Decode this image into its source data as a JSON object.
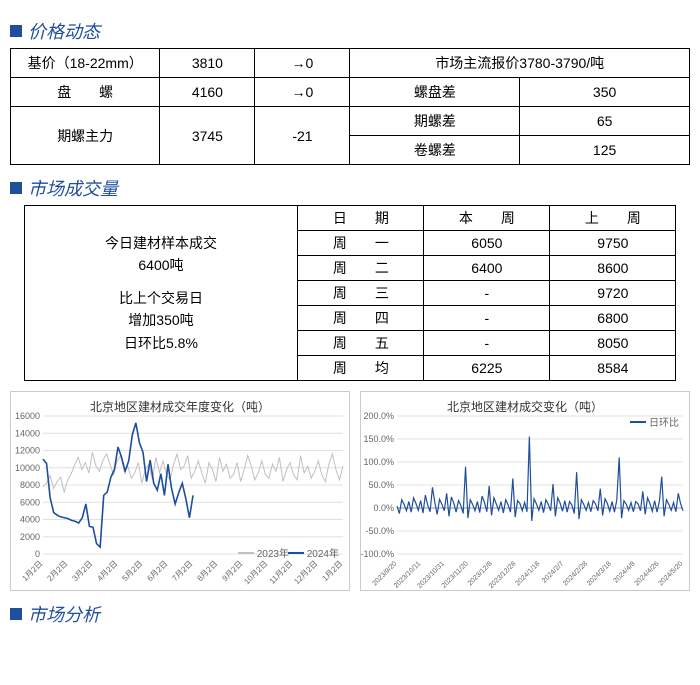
{
  "sections": {
    "price": "价格动态",
    "volume": "市场成交量",
    "analysis": "市场分析"
  },
  "price_table": {
    "r1c1": "基价（18-22mm）",
    "r1c2": "3810",
    "r1c3": "→0",
    "r1c4": "市场主流报价3780-3790/吨",
    "r2c1": "盘　　螺",
    "r2c2": "4160",
    "r2c3": "→0",
    "r2c4": "螺盘差",
    "r2c5": "350",
    "r3c1": "期螺主力",
    "r3c2": "3745",
    "r3c3": "-21",
    "r3c4": "期螺差",
    "r3c5": "65",
    "r4c4": "卷螺差",
    "r4c5": "125"
  },
  "volume_left": {
    "line1": "今日建材样本成交",
    "line2": "6400吨",
    "line3": "比上个交易日",
    "line4": "增加350吨",
    "line5": "日环比5.8%"
  },
  "volume_table": {
    "h1": "日　　期",
    "h2": "本　　周",
    "h3": "上　　周",
    "d": [
      [
        "周　　一",
        "6050",
        "9750"
      ],
      [
        "周　　二",
        "6400",
        "8600"
      ],
      [
        "周　　三",
        "-",
        "9720"
      ],
      [
        "周　　四",
        "-",
        "6800"
      ],
      [
        "周　　五",
        "-",
        "8050"
      ],
      [
        "周　　均",
        "6225",
        "8584"
      ]
    ]
  },
  "chart1": {
    "title": "北京地区建材成交年度变化（吨）",
    "legend": [
      "2023年",
      "2024年"
    ],
    "ylim": [
      0,
      16000
    ],
    "ytick_step": 2000,
    "xticks": [
      "1月2日",
      "2月2日",
      "3月2日",
      "4月2日",
      "5月2日",
      "6月2日",
      "7月2日",
      "8月2日",
      "9月2日",
      "10月2日",
      "11月2日",
      "12月2日",
      "1月2日"
    ],
    "color_2023": "#c0c0c0",
    "color_2024": "#1f4e9c",
    "grid_color": "#e0e0e0",
    "background_color": "#ffffff",
    "data_2024": [
      11000,
      10500,
      6500,
      4800,
      4500,
      4300,
      4200,
      4100,
      3900,
      3800,
      3600,
      4200,
      5800,
      3200,
      3100,
      1200,
      800,
      6800,
      7200,
      8900,
      9800,
      12400,
      11200,
      9600,
      10800,
      13800,
      15200,
      12900,
      11800,
      8400,
      10900,
      8200,
      7400,
      9300,
      6800,
      10400,
      7600,
      5800,
      7100,
      8200,
      6400,
      4200,
      6800
    ],
    "data_2023": [
      7800,
      8200,
      9100,
      7600,
      8400,
      8900,
      7200,
      8600,
      9300,
      10400,
      11200,
      9800,
      10600,
      9400,
      11800,
      10200,
      9600,
      10900,
      11600,
      10400,
      9200,
      10800,
      11400,
      9600,
      10200,
      8800,
      9400,
      10600,
      8200,
      9800,
      10400,
      8600,
      11200,
      9400,
      10800,
      9200,
      8600,
      10400,
      11600,
      9800,
      10200,
      11400,
      8800,
      9600,
      10800,
      9400,
      8200,
      10600,
      9800,
      8400,
      11200,
      9600,
      10400,
      8800,
      9200,
      10600,
      8400,
      9800,
      11400,
      10200,
      8600,
      9400,
      10800,
      9200,
      8800,
      10400,
      9600,
      11200,
      8400,
      9800,
      10600,
      9200,
      8600,
      11400,
      9400,
      10200,
      8800,
      9600,
      10800,
      9200,
      8400,
      10400,
      11600,
      9800,
      8600,
      10200
    ]
  },
  "chart2": {
    "title": "北京地区建材成交变化（吨）",
    "legend": "日环比",
    "ylim": [
      -100,
      200
    ],
    "ytick_step": 50,
    "color": "#1f4e9c",
    "grid_color": "#e0e0e0",
    "background_color": "#ffffff",
    "xticks": [
      "2023/9/20",
      "2023/10/11",
      "2023/10/31",
      "2023/11/20",
      "2023/12/8",
      "2023/12/28",
      "2024/1/18",
      "2024/2/7",
      "2024/2/28",
      "2024/3/18",
      "2024/4/8",
      "2024/4/26",
      "2024/5/20"
    ],
    "data": [
      4,
      -12,
      18,
      8,
      -6,
      14,
      -9,
      22,
      10,
      -5,
      16,
      -11,
      28,
      6,
      -8,
      45,
      12,
      -14,
      19,
      8,
      -6,
      32,
      -18,
      24,
      11,
      -9,
      16,
      6,
      -12,
      90,
      -22,
      18,
      8,
      -6,
      14,
      -10,
      26,
      12,
      -8,
      48,
      -16,
      22,
      9,
      -5,
      14,
      -11,
      18,
      7,
      -9,
      64,
      -20,
      16,
      10,
      -6,
      12,
      -8,
      155,
      -28,
      20,
      9,
      -5,
      14,
      -10,
      18,
      8,
      -6,
      52,
      -18,
      22,
      11,
      -7,
      16,
      -9,
      14,
      6,
      -12,
      78,
      -24,
      18,
      8,
      -5,
      12,
      -8,
      16,
      9,
      -6,
      42,
      -16,
      20,
      10,
      -7,
      14,
      -9,
      18,
      110,
      -22,
      16,
      8,
      -5,
      12,
      -8,
      14,
      9,
      -6,
      36,
      -14,
      22,
      10,
      -7,
      16,
      -9,
      14,
      68,
      -18,
      18,
      8,
      -5,
      12,
      -8,
      32,
      9,
      -6
    ]
  }
}
